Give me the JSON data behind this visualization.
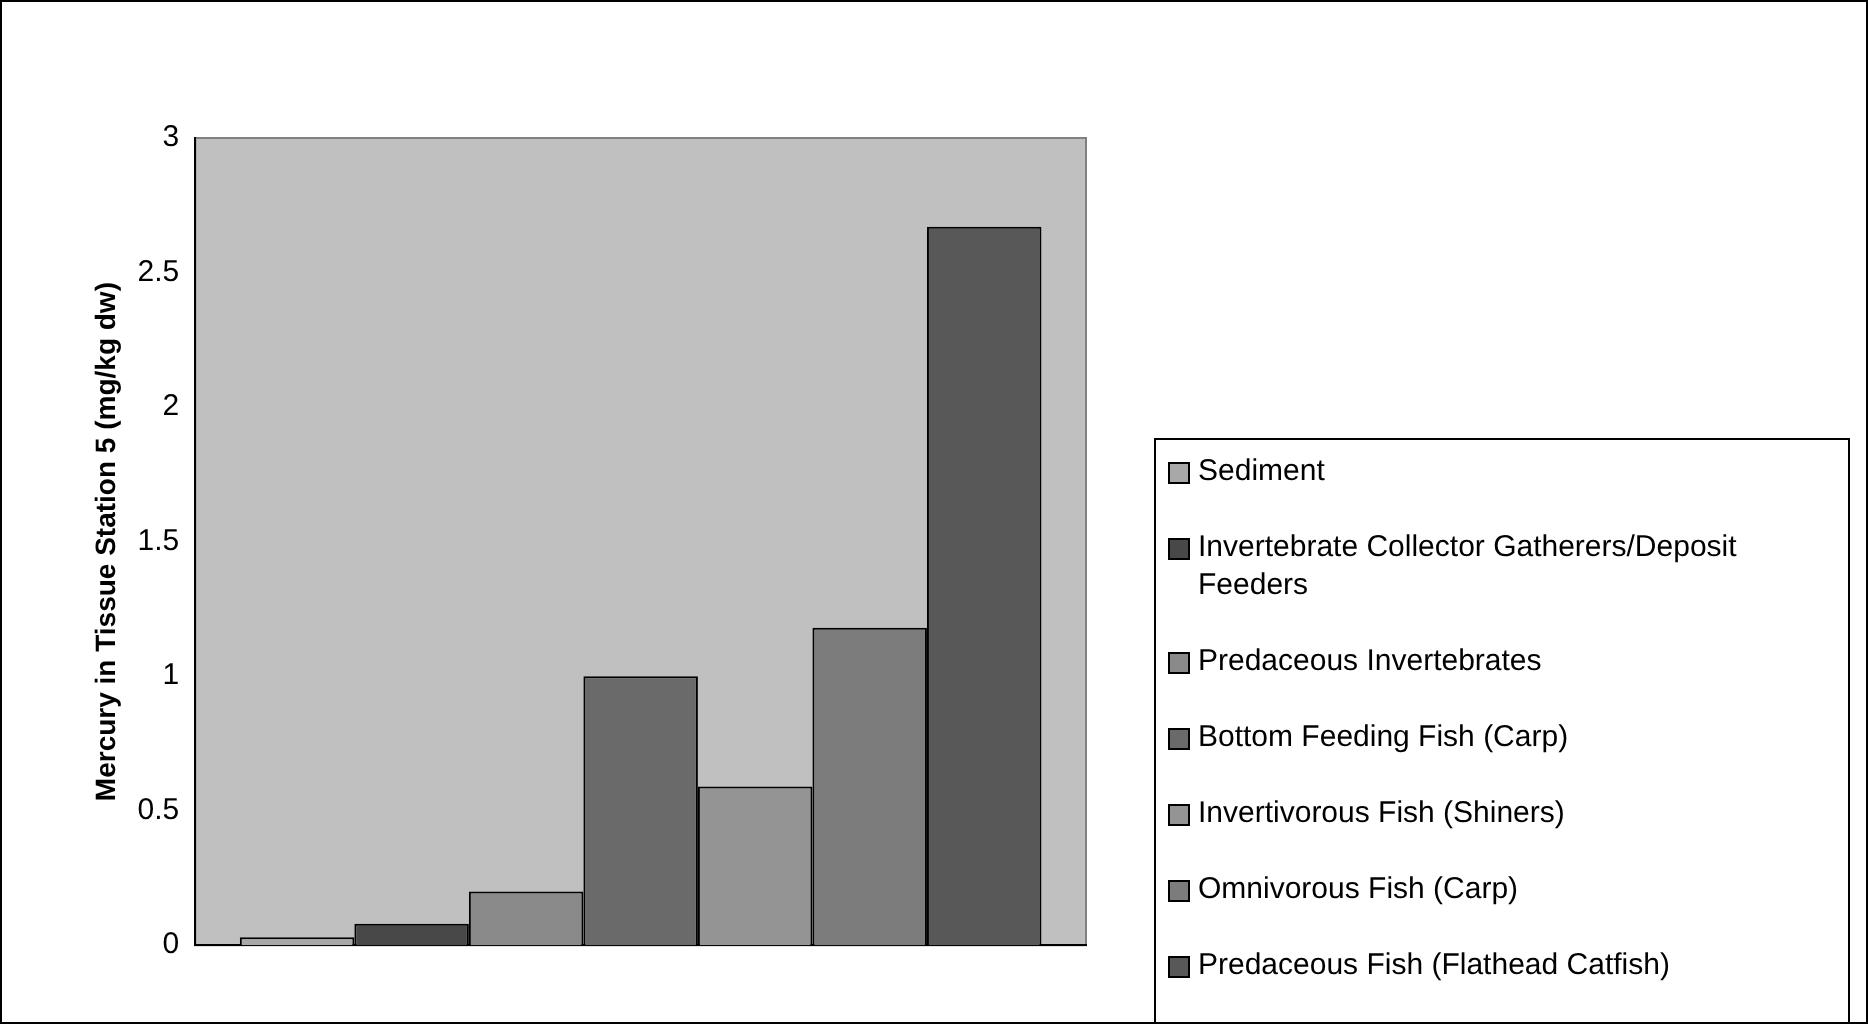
{
  "chart_data": {
    "type": "bar",
    "ylabel": "Mercury in Tissue Station 5 (mg/kg dw)",
    "categories": [
      null
    ],
    "series": [
      {
        "name": "Sediment",
        "color": "#a8a8a8",
        "values": [
          0.03
        ]
      },
      {
        "name": "Invertebrate Collector Gatherers/Deposit Feeders",
        "color": "#484848",
        "values": [
          0.08
        ]
      },
      {
        "name": "Predaceous Invertebrates",
        "color": "#8a8a8a",
        "values": [
          0.2
        ]
      },
      {
        "name": "Bottom Feeding Fish (Carp)",
        "color": "#6a6a6a",
        "values": [
          1.0
        ]
      },
      {
        "name": "Invertivorous Fish (Shiners)",
        "color": "#949494",
        "values": [
          0.59
        ]
      },
      {
        "name": "Omnivorous Fish (Carp)",
        "color": "#7c7c7c",
        "values": [
          1.18
        ]
      },
      {
        "name": "Predaceous Fish (Flathead Catfish)",
        "color": "#585858",
        "values": [
          2.67
        ]
      }
    ],
    "ylim": [
      0,
      3
    ],
    "yticks": [
      0,
      0.5,
      1,
      1.5,
      2,
      2.5,
      3
    ],
    "grid": false,
    "legend": "right"
  }
}
